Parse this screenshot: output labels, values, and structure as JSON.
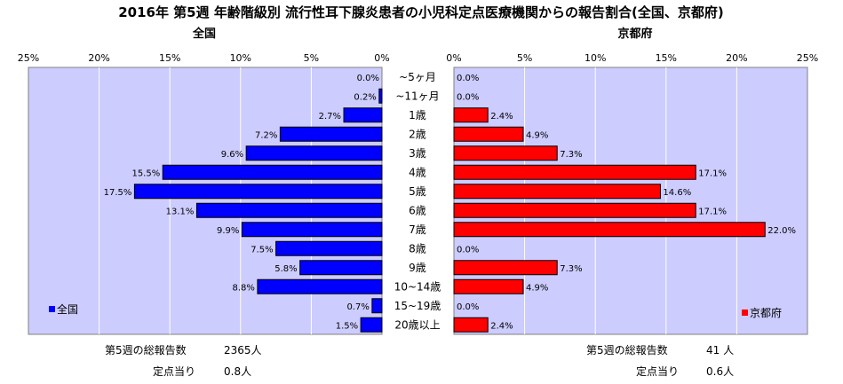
{
  "chart_data": {
    "type": "bar",
    "title": "2016年 第5週 年齢階級別 流行性耳下腺炎患者の小児科定点医療機関からの報告割合(全国、京都府)",
    "categories": [
      "~5ヶ月",
      "~11ヶ月",
      "1歳",
      "2歳",
      "3歳",
      "4歳",
      "5歳",
      "6歳",
      "7歳",
      "8歳",
      "9歳",
      "10~14歳",
      "15~19歳",
      "20歳以上"
    ],
    "xlim": [
      0,
      25
    ],
    "tick_labels": [
      "0%",
      "5%",
      "10%",
      "15%",
      "20%",
      "25%"
    ],
    "grid": true,
    "series": [
      {
        "name": "全国",
        "subtitle": "全国",
        "color": "#0000ff",
        "values": [
          0.0,
          0.2,
          2.7,
          7.2,
          9.6,
          15.5,
          17.5,
          13.1,
          9.9,
          7.5,
          5.8,
          8.8,
          0.7,
          1.5
        ],
        "labels": [
          "0.0%",
          "0.2%",
          "2.7%",
          "7.2%",
          "9.6%",
          "15.5%",
          "17.5%",
          "13.1%",
          "9.9%",
          "7.5%",
          "5.8%",
          "8.8%",
          "0.7%",
          "1.5%"
        ],
        "legend_position": "bottom-left",
        "total_label": "第5週の総報告数",
        "total_value": "2365人",
        "per_site_label": "定点当り",
        "per_site_value": "0.8人"
      },
      {
        "name": "京都府",
        "subtitle": "京都府",
        "color": "#ff0000",
        "values": [
          0.0,
          0.0,
          2.4,
          4.9,
          7.3,
          17.1,
          14.6,
          17.1,
          22.0,
          0.0,
          7.3,
          4.9,
          0.0,
          2.4
        ],
        "labels": [
          "0.0%",
          "0.0%",
          "2.4%",
          "4.9%",
          "7.3%",
          "17.1%",
          "14.6%",
          "17.1%",
          "22.0%",
          "0.0%",
          "7.3%",
          "4.9%",
          "0.0%",
          "2.4%"
        ],
        "legend_position": "bottom-right",
        "total_label": "第5週の総報告数",
        "total_value": "41 人",
        "per_site_label": "定点当り",
        "per_site_value": "0.6人"
      }
    ]
  }
}
